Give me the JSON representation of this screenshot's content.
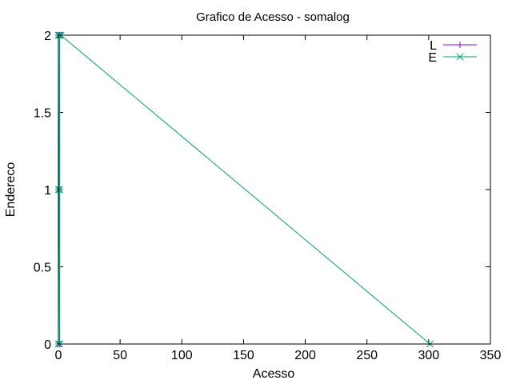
{
  "chart_data": {
    "type": "line",
    "title": "Grafico de Acesso - somalog",
    "xlabel": "Acesso",
    "ylabel": "Endereco",
    "xlim": [
      0,
      350
    ],
    "ylim": [
      0,
      2
    ],
    "xticks": [
      0,
      50,
      100,
      150,
      200,
      250,
      300,
      350
    ],
    "yticks": [
      0,
      0.5,
      1,
      1.5,
      2
    ],
    "ytick_labels": [
      "0",
      "0.5",
      "1",
      "1.5",
      "2"
    ],
    "grid": false,
    "legend_position": "top-right",
    "series": [
      {
        "name": "L",
        "color": "#9400d3",
        "marker": "plus",
        "points": [
          [
            0,
            0
          ],
          [
            0,
            1
          ],
          [
            0,
            2
          ],
          [
            1,
            2
          ],
          [
            1,
            1
          ],
          [
            1,
            0
          ],
          [
            1,
            2
          ],
          [
            2,
            2
          ]
        ]
      },
      {
        "name": "E",
        "color": "#009e73",
        "marker": "x",
        "points": [
          [
            0,
            0
          ],
          [
            0,
            2
          ],
          [
            0,
            1
          ],
          [
            1,
            1
          ],
          [
            1,
            2
          ],
          [
            0,
            2
          ],
          [
            1,
            0
          ],
          [
            1,
            2
          ],
          [
            2,
            2
          ],
          [
            301,
            0
          ]
        ]
      }
    ]
  }
}
